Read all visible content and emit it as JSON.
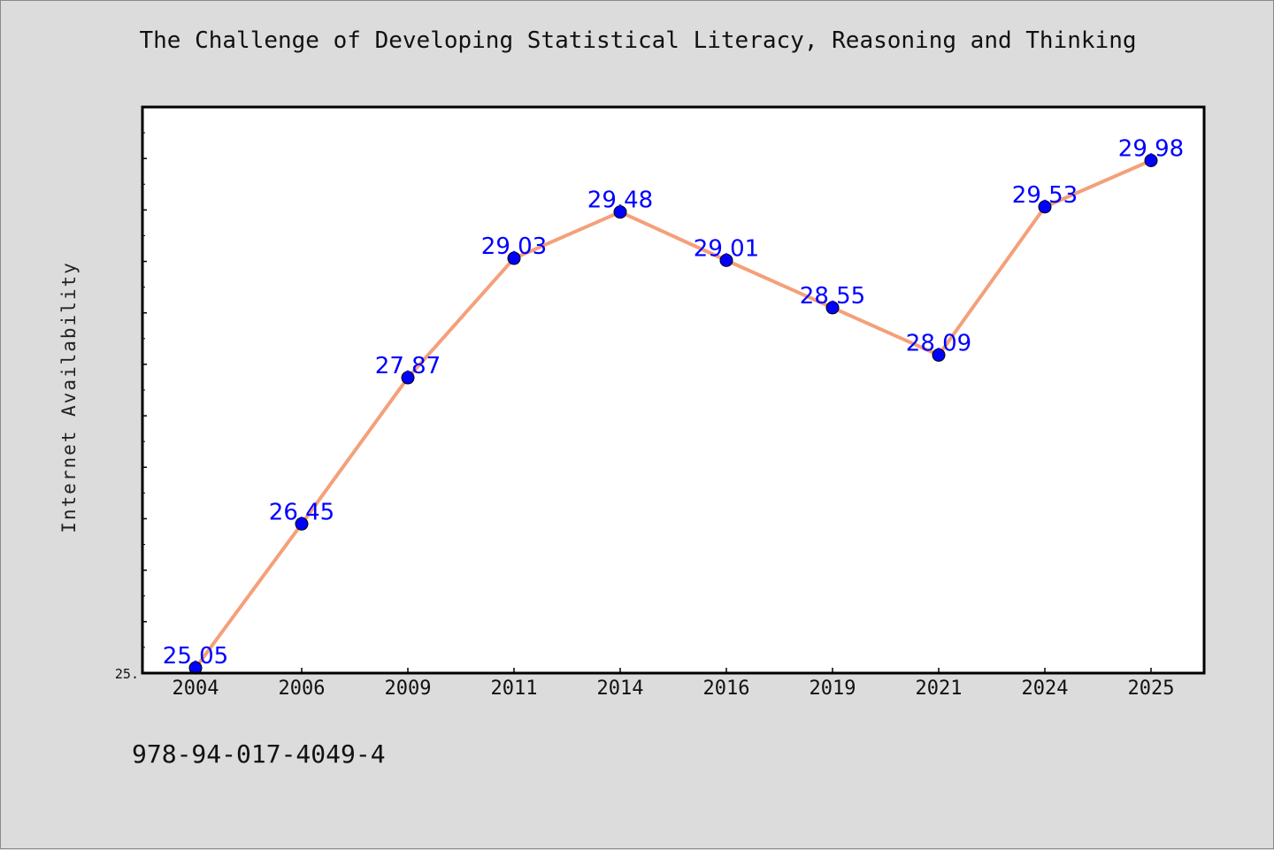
{
  "chart_data": {
    "type": "line",
    "title": "The Challenge of Developing Statistical Literacy, Reasoning and Thinking",
    "xlabel": "",
    "ylabel": "Internet Availability",
    "categories": [
      "2004",
      "2006",
      "2009",
      "2011",
      "2014",
      "2016",
      "2019",
      "2021",
      "2024",
      "2025"
    ],
    "series": [
      {
        "values": [
          25.05,
          26.45,
          27.87,
          29.03,
          29.48,
          29.01,
          28.55,
          28.09,
          29.53,
          29.98
        ],
        "data_labels": [
          "25.05",
          "26.45",
          "27.87",
          "29.03",
          "29.48",
          "29.01",
          "28.55",
          "28.09",
          "29.53",
          "29.98"
        ]
      }
    ],
    "ylim": [
      25.0,
      30.5
    ],
    "y_min_tick_label": "25.",
    "line_color": "#f4a07a",
    "marker_color": "#0000ff",
    "label_color": "#0000ff",
    "plot_background": "#ffffff",
    "grid": false,
    "legend": "none"
  },
  "footer_text": "978-94-017-4049-4"
}
